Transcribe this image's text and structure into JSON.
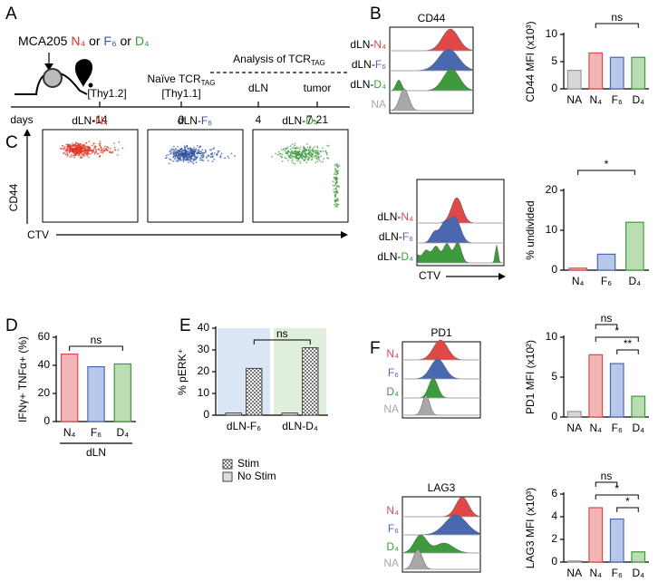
{
  "panel_labels": [
    "A",
    "B",
    "C",
    "D",
    "E",
    "F"
  ],
  "timeline": {
    "tumor": [
      "MCA205 ",
      "N₄",
      " or ",
      "F₆",
      " or ",
      "D₄"
    ],
    "tumor_colors": [
      "#000000",
      "#e03030",
      "#000000",
      "#3a5aa8",
      "#000000",
      "#3d9a3d"
    ],
    "host": "[Thy1.2]",
    "transfer": "Naïve TCR",
    "transfer_sub": "TAG",
    "transfer_host": "[Thy1.1]",
    "analysis": "Analysis of TCR",
    "analysis_sub": "TAG",
    "sites": [
      "dLN",
      "tumor"
    ],
    "days_label": "days",
    "days": [
      "-14",
      "0",
      "4",
      "7-21"
    ]
  },
  "histograms": [
    {
      "title": "CD44",
      "rows": [
        [
          "dLN-",
          "N₄"
        ],
        [
          "dLN-",
          "F₆"
        ],
        [
          "dLN-",
          "D₄"
        ],
        [
          "NA"
        ]
      ],
      "colors": [
        "#e04848",
        "#4a68b0",
        "#3d9a3d",
        "#a8a8a8"
      ]
    },
    {
      "x_label": "CTV",
      "rows": [
        [
          "dLN-",
          "N₄"
        ],
        [
          "dLN-",
          "F₆"
        ],
        [
          "dLN-",
          "D₄"
        ]
      ],
      "colors": [
        "#e04848",
        "#4a68b0",
        "#3d9a3d"
      ]
    },
    {
      "title": "PD1",
      "rows": [
        [
          "N₄"
        ],
        [
          "F₆"
        ],
        [
          "D₄"
        ],
        [
          "NA"
        ]
      ],
      "colors": [
        "#e04848",
        "#4a68b0",
        "#3d9a3d",
        "#a8a8a8"
      ]
    },
    {
      "title": "LAG3",
      "rows": [
        [
          "N₄"
        ],
        [
          "F₆"
        ],
        [
          "D₄"
        ],
        [
          "NA"
        ]
      ],
      "colors": [
        "#e04848",
        "#4a68b0",
        "#3d9a3d",
        "#a8a8a8"
      ]
    }
  ],
  "flow": {
    "titles": [
      [
        "dLN-",
        "N₄"
      ],
      [
        "dLN-",
        "F₆"
      ],
      [
        "dLN-",
        "D₄"
      ]
    ],
    "colors": [
      "#e03020",
      "#3050a0",
      "#3d9a3d"
    ],
    "y_label": "CD44",
    "x_label": "CTV"
  },
  "chart_data": [
    {
      "type": "bar",
      "y_label": "CD44 MFI (x10³)",
      "categories": [
        "NA",
        "N₄",
        "F₆",
        "D₄"
      ],
      "values": [
        3.4,
        6.6,
        5.8,
        5.8
      ],
      "colors": [
        "#d8d8d8",
        "#f3b5b5",
        "#b8c8ea",
        "#bcdcb4"
      ],
      "edge_colors": [
        "#999999",
        "#e04848",
        "#4a68b0",
        "#3d9a3d"
      ],
      "ylim": [
        0,
        10
      ],
      "yticks": [
        0,
        5,
        10
      ],
      "annotations": [
        {
          "label": "ns",
          "between": [
            1,
            3
          ]
        }
      ]
    },
    {
      "type": "bar",
      "y_label": "% undivided",
      "categories": [
        "N₄",
        "F₆",
        "D₄"
      ],
      "values": [
        0.5,
        4,
        12
      ],
      "colors": [
        "#f3b5b5",
        "#b8c8ea",
        "#bcdcb4"
      ],
      "edge_colors": [
        "#e04848",
        "#4a68b0",
        "#3d9a3d"
      ],
      "ylim": [
        0,
        20
      ],
      "yticks": [
        0,
        10,
        20
      ],
      "annotations": [
        {
          "label": "*",
          "between": [
            0,
            2
          ]
        }
      ]
    },
    {
      "type": "bar",
      "y_label": "IFNγ+ TNFα+ (%)",
      "categories": [
        "N₄",
        "F₆",
        "D₄"
      ],
      "values": [
        48,
        39,
        41
      ],
      "colors": [
        "#f3b5b5",
        "#b8c8ea",
        "#bcdcb4"
      ],
      "edge_colors": [
        "#e04848",
        "#4a68b0",
        "#3d9a3d"
      ],
      "ylim": [
        0,
        60
      ],
      "yticks": [
        0,
        20,
        40,
        60
      ],
      "group_label": "dLN",
      "annotations": [
        {
          "label": "ns",
          "between": [
            0,
            2
          ]
        }
      ]
    },
    {
      "type": "bar",
      "y_label": "% pERK⁺",
      "categories": [
        "dLN-F₆",
        "dLN-D₄"
      ],
      "series": [
        {
          "name": "Stim",
          "values": [
            21.5,
            31
          ],
          "color": "#bbbbbb"
        },
        {
          "name": "No Stim",
          "values": [
            1,
            1
          ],
          "color": "#dddddd"
        }
      ],
      "background_colors": [
        "#dbe6f4",
        "#e0eedc"
      ],
      "ylim": [
        0,
        40
      ],
      "yticks": [
        0,
        10,
        20,
        30,
        40
      ],
      "annotations": [
        {
          "label": "ns",
          "between": [
            0,
            1
          ]
        }
      ]
    },
    {
      "type": "bar",
      "y_label": "PD1 MFI (x10²)",
      "categories": [
        "NA",
        "N₄",
        "F₆",
        "D₄"
      ],
      "values": [
        0.7,
        7.8,
        6.7,
        2.6
      ],
      "colors": [
        "#d8d8d8",
        "#f3b5b5",
        "#b8c8ea",
        "#bcdcb4"
      ],
      "edge_colors": [
        "#999999",
        "#e04848",
        "#4a68b0",
        "#3d9a3d"
      ],
      "ylim": [
        0,
        10
      ],
      "yticks": [
        0,
        5,
        10
      ],
      "annotations": [
        {
          "label": "ns",
          "between": [
            1,
            2
          ]
        },
        {
          "label": "*",
          "between": [
            1,
            3
          ]
        },
        {
          "label": "**",
          "between": [
            2,
            3
          ]
        }
      ]
    },
    {
      "type": "bar",
      "y_label": "LAG3 MFI (x10³)",
      "categories": [
        "NA",
        "N₄",
        "F₆",
        "D₄"
      ],
      "values": [
        0.1,
        4.8,
        3.8,
        0.9
      ],
      "colors": [
        "#d8d8d8",
        "#f3b5b5",
        "#b8c8ea",
        "#bcdcb4"
      ],
      "edge_colors": [
        "#999999",
        "#e04848",
        "#4a68b0",
        "#3d9a3d"
      ],
      "ylim": [
        0,
        6
      ],
      "yticks": [
        0,
        2,
        4,
        6
      ],
      "annotations": [
        {
          "label": "ns",
          "between": [
            1,
            2
          ]
        },
        {
          "label": "*",
          "between": [
            1,
            3
          ]
        },
        {
          "label": "*",
          "between": [
            2,
            3
          ]
        }
      ]
    }
  ]
}
